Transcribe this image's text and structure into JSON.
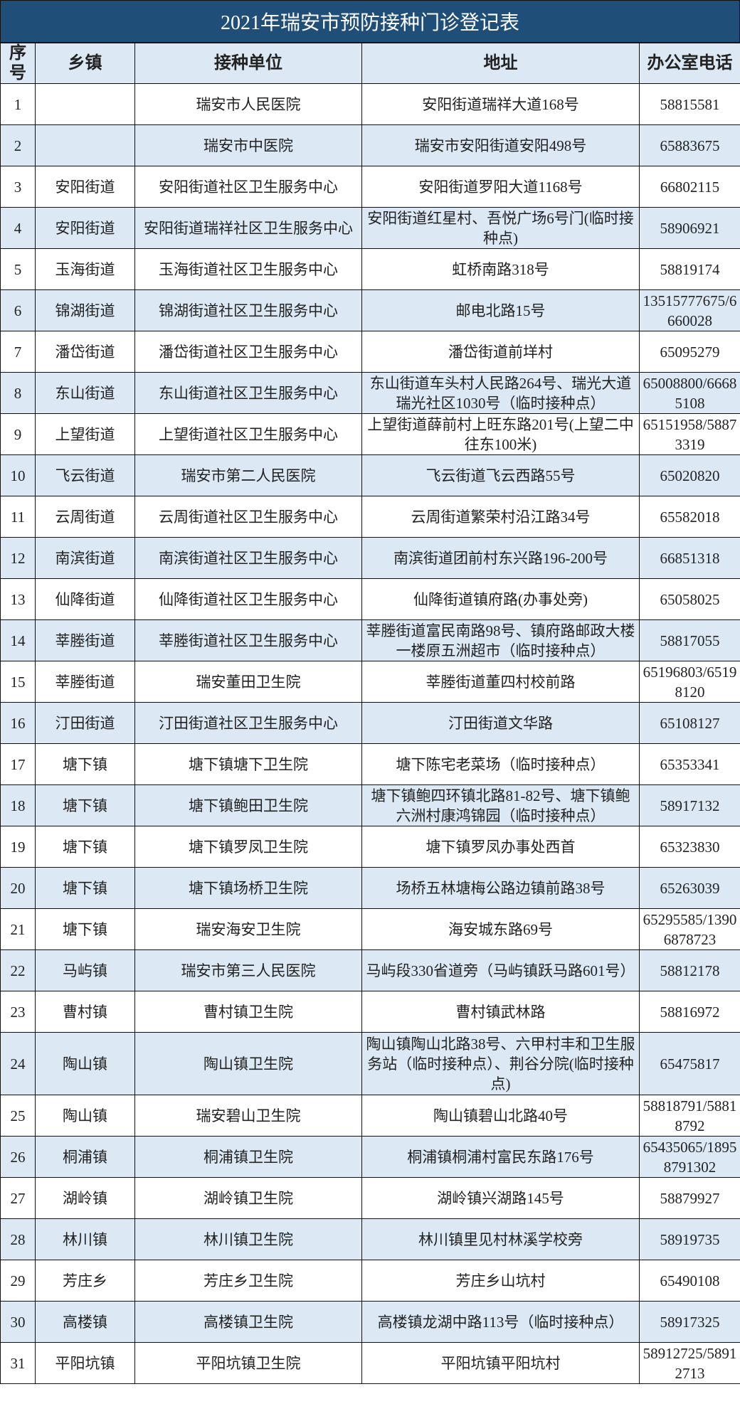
{
  "title": "2021年瑞安市预防接种门诊登记表",
  "colors": {
    "title_bg": "#1f4e79",
    "shade": "#dce9f5"
  },
  "columns": [
    "序号",
    "乡镇",
    "接种单位",
    "地址",
    "办公室电话"
  ],
  "rows": [
    [
      "1",
      "",
      "瑞安市人民医院",
      "安阳街道瑞祥大道168号",
      "58815581"
    ],
    [
      "2",
      "",
      "瑞安市中医院",
      "瑞安市安阳街道安阳498号",
      "65883675"
    ],
    [
      "3",
      "安阳街道",
      "安阳街道社区卫生服务中心",
      "安阳街道罗阳大道1168号",
      "66802115"
    ],
    [
      "4",
      "安阳街道",
      "安阳街道瑞祥社区卫生服务中心",
      "安阳街道红星村、吾悦广场6号门(临时接种点)",
      "58906921"
    ],
    [
      "5",
      "玉海街道",
      "玉海街道社区卫生服务中心",
      "虹桥南路318号",
      "58819174"
    ],
    [
      "6",
      "锦湖街道",
      "锦湖街道社区卫生服务中心",
      "邮电北路15号",
      "13515777675/6660028"
    ],
    [
      "7",
      "潘岱街道",
      "潘岱街道社区卫生服务中心",
      "潘岱街道前垟村",
      "65095279"
    ],
    [
      "8",
      "东山街道",
      "东山街道社区卫生服务中心",
      "东山街道车头村人民路264号、瑞光大道瑞光社区1030号（临时接种点）",
      "65008800/66685108"
    ],
    [
      "9",
      "上望街道",
      "上望街道社区卫生服务中心",
      "上望街道薛前村上旺东路201号(上望二中往东100米)",
      "65151958/58873319"
    ],
    [
      "10",
      "飞云街道",
      "瑞安市第二人民医院",
      "飞云街道飞云西路55号",
      "65020820"
    ],
    [
      "11",
      "云周街道",
      "云周街道社区卫生服务中心",
      "云周街道繁荣村沿江路34号",
      "65582018"
    ],
    [
      "12",
      "南滨街道",
      "南滨街道社区卫生服务中心",
      "南滨街道团前村东兴路196-200号",
      "66851318"
    ],
    [
      "13",
      "仙降街道",
      "仙降街道社区卫生服务中心",
      "仙降街道镇府路(办事处旁)",
      "65058025"
    ],
    [
      "14",
      "莘塍街道",
      "莘塍街道社区卫生服务中心",
      "莘塍街道富民南路98号、镇府路邮政大楼一楼原五洲超市（临时接种点）",
      "58817055"
    ],
    [
      "15",
      "莘塍街道",
      "瑞安董田卫生院",
      "莘塍街道董四村校前路",
      "65196803/65198120"
    ],
    [
      "16",
      "汀田街道",
      "汀田街道社区卫生服务中心",
      "汀田街道文华路",
      "65108127"
    ],
    [
      "17",
      "塘下镇",
      "塘下镇塘下卫生院",
      "塘下陈宅老菜场（临时接种点）",
      "65353341"
    ],
    [
      "18",
      "塘下镇",
      "塘下镇鲍田卫生院",
      "塘下镇鲍四环镇北路81-82号、塘下镇鲍六洲村康鸿锦园（临时接种点）",
      "58917132"
    ],
    [
      "19",
      "塘下镇",
      "塘下镇罗凤卫生院",
      "塘下镇罗凤办事处西首",
      "65323830"
    ],
    [
      "20",
      "塘下镇",
      "塘下镇场桥卫生院",
      "场桥五林塘梅公路边镇前路38号",
      "65263039"
    ],
    [
      "21",
      "塘下镇",
      "瑞安海安卫生院",
      "海安城东路69号",
      "65295585/13906878723"
    ],
    [
      "22",
      "马屿镇",
      "瑞安市第三人民医院",
      "马屿段330省道旁（马屿镇跃马路601号）",
      "58812178"
    ],
    [
      "23",
      "曹村镇",
      "曹村镇卫生院",
      "曹村镇武林路",
      "58816972"
    ],
    [
      "24",
      "陶山镇",
      "陶山镇卫生院",
      "陶山镇陶山北路38号、六甲村丰和卫生服务站（临时接种点）、荆谷分院(临时接种点)",
      "65475817"
    ],
    [
      "25",
      "陶山镇",
      "瑞安碧山卫生院",
      "陶山镇碧山北路40号",
      "58818791/58818792"
    ],
    [
      "26",
      "桐浦镇",
      "桐浦镇卫生院",
      "桐浦镇桐浦村富民东路176号",
      "65435065/18958791302"
    ],
    [
      "27",
      "湖岭镇",
      "湖岭镇卫生院",
      "湖岭镇兴湖路145号",
      "58879927"
    ],
    [
      "28",
      "林川镇",
      "林川镇卫生院",
      "林川镇里见村林溪学校旁",
      "58919735"
    ],
    [
      "29",
      "芳庄乡",
      "芳庄乡卫生院",
      "芳庄乡山坑村",
      "65490108"
    ],
    [
      "30",
      "高楼镇",
      "高楼镇卫生院",
      "高楼镇龙湖中路113号（临时接种点）",
      "58917325"
    ],
    [
      "31",
      "平阳坑镇",
      "平阳坑镇卫生院",
      "平阳坑镇平阳坑村",
      "58912725/58912713"
    ]
  ]
}
